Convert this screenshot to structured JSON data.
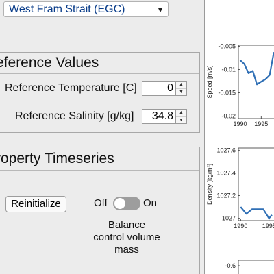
{
  "region_select": {
    "selected": "West Fram Strait (EGC)"
  },
  "reference_values": {
    "title": "eference Values",
    "temperature_label": "Reference Temperature [C]",
    "temperature_value": "0",
    "salinity_label": "Reference Salinity [g/kg]",
    "salinity_value": "34.8"
  },
  "property_timeseries": {
    "title": "roperty Timeseries",
    "reinitialize_label": "Reinitialize",
    "switch_off_label": "Off",
    "switch_on_label": "On",
    "switch_state": "off",
    "balance_label_1": "Balance",
    "balance_label_2": "control volume",
    "balance_label_3": "mass"
  },
  "colors": {
    "line": "#2f6fb5",
    "accent": "#0a3d8a"
  },
  "chart_data": [
    {
      "type": "line",
      "ylabel": "Speed [m/s]",
      "yticks": [
        "-0.005",
        "-0.01",
        "-0.015",
        "-0.02"
      ],
      "ytick_values": [
        -0.005,
        -0.01,
        -0.015,
        -0.02
      ],
      "xticks": [
        "1990",
        "1995"
      ],
      "xtick_values": [
        1990,
        1995
      ],
      "ylim": [
        -0.0205,
        -0.0048
      ],
      "xlim": [
        1989.6,
        1998.2
      ],
      "x": [
        1990,
        1991,
        1992,
        1993,
        1994,
        1995,
        1996,
        1997,
        1998
      ],
      "values": [
        -0.008,
        -0.0088,
        -0.0108,
        -0.0103,
        -0.0132,
        -0.0126,
        -0.0121,
        -0.0112,
        -0.0063
      ]
    },
    {
      "type": "line",
      "ylabel": "Density  [kg/m³]",
      "yticks": [
        "1027.6",
        "1027.4",
        "1027.2",
        "1027"
      ],
      "ytick_values": [
        1027.6,
        1027.4,
        1027.2,
        1027.0
      ],
      "xticks": [
        "1990",
        "1995"
      ],
      "xtick_values": [
        1990,
        1995
      ],
      "ylim": [
        1026.98,
        1027.62
      ],
      "xlim": [
        1989.6,
        1996.0
      ],
      "x": [
        1990,
        1991,
        1992,
        1993,
        1994,
        1995,
        1995.5
      ],
      "values": [
        1027.1,
        1027.04,
        1027.08,
        1027.08,
        1027.08,
        1027.0,
        1027.03
      ]
    },
    {
      "type": "line",
      "ylabel": "",
      "yticks": [
        "-0.6"
      ],
      "ytick_values": [
        -0.6
      ],
      "xticks": [],
      "xtick_values": [],
      "ylim": [
        -0.8,
        -0.55
      ],
      "xlim": [
        1989.6,
        1998.2
      ],
      "x": [],
      "values": []
    }
  ]
}
